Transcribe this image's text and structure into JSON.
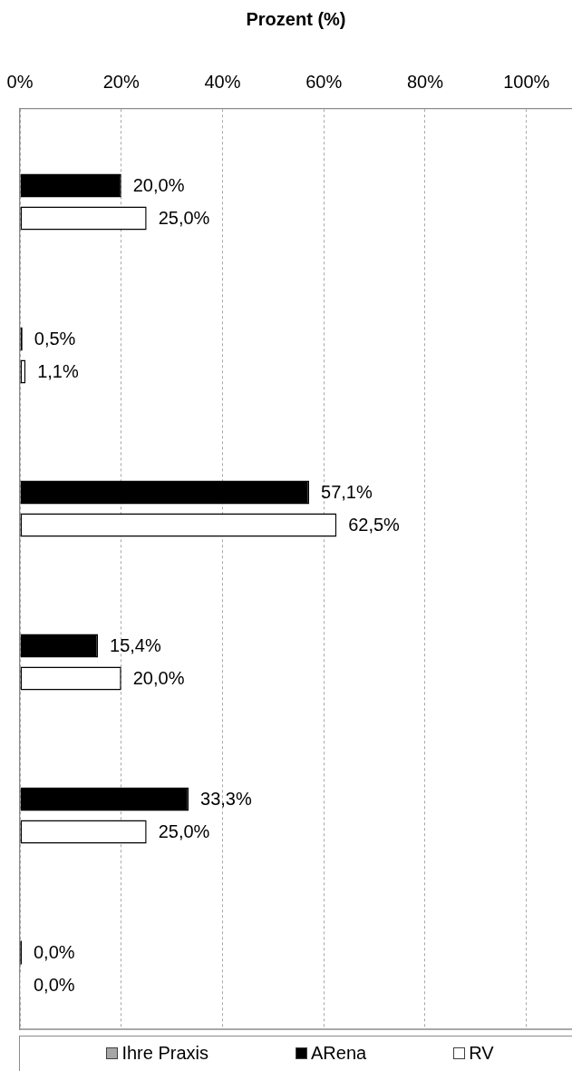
{
  "chart_data": {
    "type": "bar",
    "orientation": "horizontal",
    "xlabel": "Prozent (%)",
    "categories": [
      null,
      null,
      null,
      null,
      null,
      null
    ],
    "series": [
      {
        "name": "Ihre Praxis",
        "color": "#a6a6a6",
        "values": [
          null,
          null,
          null,
          null,
          null,
          null
        ]
      },
      {
        "name": "ARena",
        "color": "#000000",
        "values": [
          20.0,
          0.5,
          57.1,
          15.4,
          33.3,
          0.0
        ],
        "value_labels": [
          "20,0%",
          "0,5%",
          "57,1%",
          "15,4%",
          "33,3%",
          "0,0%"
        ]
      },
      {
        "name": "RV",
        "color": "#ffffff",
        "values": [
          25.0,
          1.1,
          62.5,
          20.0,
          25.0,
          0.0
        ],
        "value_labels": [
          "25,0%",
          "1,1%",
          "62,5%",
          "20,0%",
          "25,0%",
          "0,0%"
        ]
      }
    ],
    "xlim": [
      0,
      109
    ],
    "xticks": [
      {
        "value": 0,
        "label": "0%"
      },
      {
        "value": 20,
        "label": "20%"
      },
      {
        "value": 40,
        "label": "40%"
      },
      {
        "value": 60,
        "label": "60%"
      },
      {
        "value": 80,
        "label": "80%"
      },
      {
        "value": 100,
        "label": "100%"
      }
    ],
    "grid": "x",
    "legend": "bottom"
  }
}
